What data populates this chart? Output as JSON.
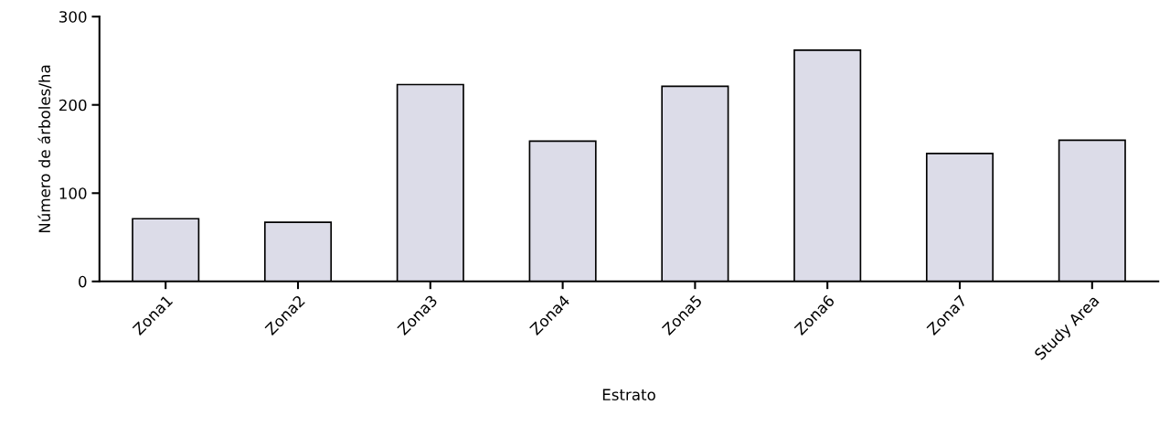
{
  "chart_data": {
    "type": "bar",
    "xlabel": "Estrato",
    "ylabel": "Número de árboles/ha",
    "categories": [
      "Zona1",
      "Zona2",
      "Zona3",
      "Zona4",
      "Zona5",
      "Zona6",
      "Zona7",
      "Study Area"
    ],
    "values": [
      71,
      67,
      223,
      159,
      221,
      262,
      145,
      160
    ],
    "color": "#dcdce8",
    "ylim": [
      0,
      300
    ],
    "yticks": [
      0,
      100,
      200,
      300
    ],
    "grid": false,
    "legend": false
  }
}
